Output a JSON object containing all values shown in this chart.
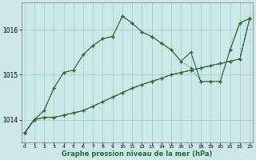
{
  "x": [
    0,
    1,
    2,
    3,
    4,
    5,
    6,
    7,
    8,
    9,
    10,
    11,
    12,
    13,
    14,
    15,
    16,
    17,
    18,
    19,
    20,
    21,
    22,
    23
  ],
  "series1": [
    1013.7,
    1014.0,
    1014.2,
    1014.7,
    1015.05,
    1015.1,
    1015.45,
    1015.65,
    1015.8,
    1015.85,
    1016.3,
    1016.15,
    1015.95,
    1015.85,
    1015.7,
    1015.55,
    1015.3,
    1015.5,
    1014.85,
    1014.85,
    1014.85,
    1015.55,
    1016.15,
    1016.25
  ],
  "series2": [
    1013.7,
    1014.0,
    1014.2,
    1014.7,
    1015.05,
    1015.1,
    1015.45,
    1015.65,
    1015.8,
    1015.85,
    1016.3,
    1016.15,
    1015.95,
    1015.85,
    1015.7,
    1015.55,
    1015.3,
    1015.15,
    1014.85,
    1014.85,
    1014.85,
    1015.55,
    1016.15,
    1016.25
  ],
  "series3": [
    1013.7,
    1014.0,
    1014.05,
    1014.05,
    1014.1,
    1014.15,
    1014.2,
    1014.3,
    1014.4,
    1014.5,
    1014.6,
    1014.7,
    1014.78,
    1014.85,
    1014.92,
    1015.0,
    1015.05,
    1015.1,
    1015.15,
    1015.2,
    1015.25,
    1015.3,
    1015.35,
    1016.25
  ],
  "series4": [
    1013.7,
    1014.0,
    1014.05,
    1014.05,
    1014.1,
    1014.15,
    1014.2,
    1014.3,
    1014.4,
    1014.5,
    1014.6,
    1014.7,
    1014.78,
    1014.85,
    1014.92,
    1015.0,
    1015.05,
    1015.1,
    1015.15,
    1015.2,
    1015.25,
    1015.3,
    1015.35,
    1016.25
  ],
  "line_color": "#2d6a2d",
  "bg_color": "#cce8e8",
  "grid_color": "#99cccc",
  "xlabel": "Graphe pression niveau de la mer (hPa)",
  "ylim": [
    1013.5,
    1016.6
  ],
  "xlim": [
    -0.3,
    23.3
  ],
  "yticks": [
    1014,
    1015,
    1016
  ],
  "xticks": [
    0,
    1,
    2,
    3,
    4,
    5,
    6,
    7,
    8,
    9,
    10,
    11,
    12,
    13,
    14,
    15,
    16,
    17,
    18,
    19,
    20,
    21,
    22,
    23
  ]
}
